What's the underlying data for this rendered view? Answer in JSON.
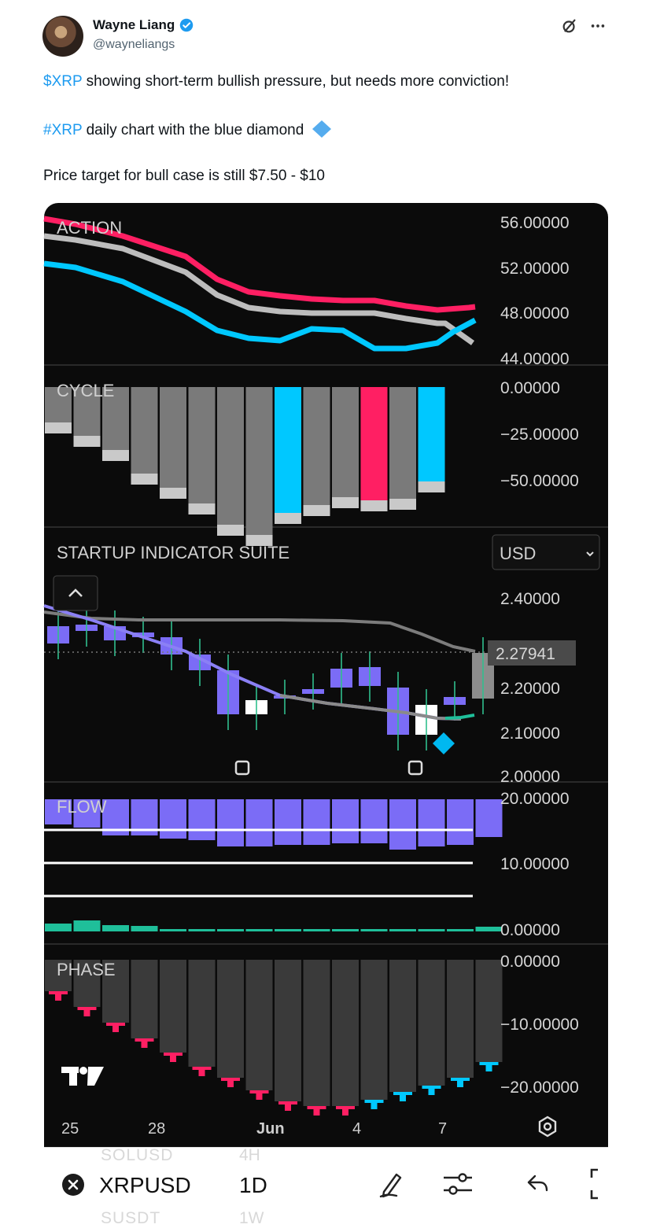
{
  "author": {
    "name": "Wayne Liang",
    "handle": "@wayneliangs",
    "verified": true
  },
  "tweet": {
    "line1_tag": "$XRP",
    "line1_text": " showing short-term bullish pressure, but needs more conviction!",
    "line2_tag": "#XRP",
    "line2_text": " daily chart with the blue diamond",
    "line3": "Price target for bull case is still $7.50 - $10"
  },
  "chart": {
    "panes": {
      "action": {
        "label": "ACTION",
        "ticks": [
          "56.00000",
          "52.00000",
          "48.00000",
          "44.00000"
        ]
      },
      "cycle": {
        "label": "CYCLE",
        "ticks": [
          "0.00000",
          "−25.00000",
          "−50.00000"
        ]
      },
      "main": {
        "label": "STARTUP INDICATOR SUITE",
        "currency": "USD",
        "ticks": [
          "2.40000",
          "2.20000",
          "2.10000",
          "2.00000"
        ],
        "last_price": "2.27941"
      },
      "flow": {
        "label": "FLOW",
        "ticks": [
          "20.00000",
          "10.00000",
          "0.00000"
        ]
      },
      "phase": {
        "label": "PHASE",
        "ticks": [
          "0.00000",
          "−10.00000",
          "−20.00000"
        ]
      }
    },
    "dates": [
      "25",
      "28",
      "Jun",
      "4",
      "7"
    ],
    "symbol": "XRPUSD",
    "interval": "1D",
    "ghost_symbols": [
      "SOLUSD",
      "SUSDT"
    ],
    "ghost_intervals": [
      "4H",
      "1W"
    ],
    "colors": {
      "accent_blue": "#1d9bf0",
      "pink": "#ff1f63",
      "cyan": "#00c8ff",
      "purple": "#7b6cf6",
      "teal": "#1fbf9a",
      "grey_line": "#bdbdbd",
      "bg": "#0b0b0b"
    }
  }
}
